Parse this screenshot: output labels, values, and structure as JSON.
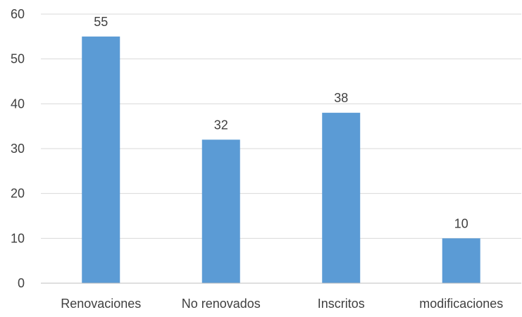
{
  "chart_data": {
    "type": "bar",
    "categories": [
      "Renovaciones",
      "No renovados",
      "Inscritos",
      "modificaciones"
    ],
    "values": [
      55,
      32,
      38,
      10
    ],
    "data_labels": [
      "55",
      "32",
      "38",
      "10"
    ],
    "title": "",
    "xlabel": "",
    "ylabel": "",
    "ylim": [
      0,
      60
    ],
    "yticks": [
      0,
      10,
      20,
      30,
      40,
      50,
      60
    ],
    "ytick_labels": [
      "0",
      "10",
      "20",
      "30",
      "40",
      "50",
      "60"
    ],
    "grid": true,
    "legend": "none",
    "bar_color": "#5b9bd5"
  }
}
